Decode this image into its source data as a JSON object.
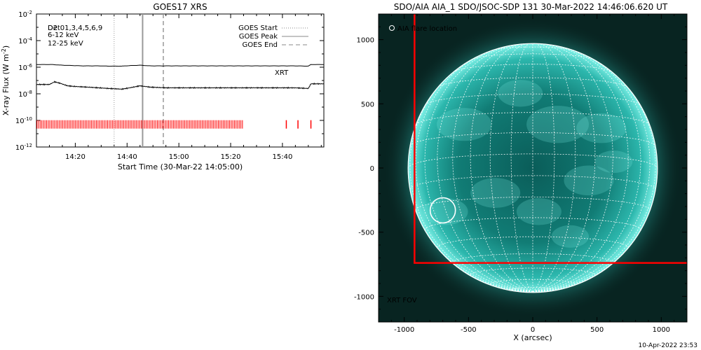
{
  "chart_data": [
    {
      "type": "line",
      "title": "GOES17 XRS",
      "xlabel": "Start Time (30-Mar-22 14:05:00)",
      "ylabel": "X-ray Flux (W m",
      "ylabel_sup": "-2",
      "ylabel_close": ")",
      "yscale": "log",
      "ylim": [
        1e-12,
        0.01
      ],
      "xlim_min": [
        0,
        111
      ],
      "ytick_labels": [
        {
          "exp": -12,
          "base": "10",
          "sup": "-12"
        },
        {
          "exp": -10,
          "base": "10",
          "sup": "-10"
        },
        {
          "exp": -8,
          "base": "10",
          "sup": "-8"
        },
        {
          "exp": -6,
          "base": "10",
          "sup": "-6"
        },
        {
          "exp": -4,
          "base": "10",
          "sup": "-4"
        },
        {
          "exp": -2,
          "base": "10",
          "sup": "-2"
        }
      ],
      "xtick_labels": [
        {
          "t": 15,
          "label": "14:20"
        },
        {
          "t": 35,
          "label": "14:40"
        },
        {
          "t": 55,
          "label": "15:00"
        },
        {
          "t": 75,
          "label": "15:20"
        },
        {
          "t": 95,
          "label": "15:40"
        }
      ],
      "det_label": "Det01,3,4,5,6,9",
      "det_overlay": "D2",
      "energy_labels": [
        {
          "text": "6-12 keV",
          "color": "#ff00ff"
        },
        {
          "text": "12-25 keV",
          "color": "#00cc00"
        }
      ],
      "legend": [
        {
          "text": "GOES Start",
          "style": "dotted"
        },
        {
          "text": "GOES Peak",
          "style": "solid"
        },
        {
          "text": "GOES End",
          "style": "dashed"
        }
      ],
      "goes_times_min": {
        "start": 30,
        "peak": 41,
        "end": 49
      },
      "xrt_label": "XRT",
      "xrt_color": "#ff0000",
      "xrt_bar_exp": -10.3,
      "xrt_dense_range_min": [
        0,
        80
      ],
      "xrt_isolated_min": [
        96.5,
        101,
        106
      ],
      "series": [
        {
          "key": "long",
          "color": "#000000",
          "x": [
            0,
            6,
            10,
            18,
            24,
            28,
            33,
            36,
            40,
            44,
            50,
            60,
            70,
            80,
            90,
            100,
            105,
            106,
            111
          ],
          "y_exp": [
            -5.8,
            -5.8,
            -5.85,
            -5.9,
            -5.9,
            -5.92,
            -5.92,
            -5.88,
            -5.85,
            -5.9,
            -5.9,
            -5.9,
            -5.9,
            -5.9,
            -5.9,
            -5.9,
            -5.92,
            -5.8,
            -5.8
          ]
        },
        {
          "key": "short",
          "color": "#000000",
          "x": [
            0,
            5,
            7,
            9,
            12,
            15,
            20,
            28,
            33,
            36,
            40,
            44,
            50,
            60,
            70,
            80,
            90,
            100,
            105,
            106,
            111
          ],
          "y_exp": [
            -7.3,
            -7.3,
            -7.1,
            -7.2,
            -7.4,
            -7.45,
            -7.5,
            -7.6,
            -7.65,
            -7.55,
            -7.4,
            -7.5,
            -7.55,
            -7.55,
            -7.55,
            -7.55,
            -7.55,
            -7.55,
            -7.6,
            -7.25,
            -7.25
          ]
        }
      ]
    },
    {
      "type": "image",
      "title": "SDO/AIA AIA_1 SDO/JSOC-SDP 131 30-Mar-2022 14:46:06.620 UT",
      "xlabel": "X (arcsec)",
      "ylabel": "",
      "xlim": [
        -1200,
        1200
      ],
      "ylim": [
        -1200,
        1200
      ],
      "xticks": [
        -1000,
        -500,
        0,
        500,
        1000
      ],
      "yticks": [
        -1000,
        -500,
        0,
        500,
        1000
      ],
      "solar_radius_arcsec": 970,
      "grid_spacing_deg": 10,
      "b0_deg": -6.5,
      "flare_location_label": "AIA flare location",
      "flare_location_arcsec": [
        -700,
        -330
      ],
      "xrt_fov_label": "XRT FOV",
      "xrt_fov_color": "#ff0000",
      "xrt_fov_corner_arcsec": [
        -920,
        -740
      ],
      "colors": {
        "disk_core": "#0d6f6a",
        "disk_limb": "#5fe9de",
        "background": "#082421"
      }
    }
  ],
  "footer_timestamp": "10-Apr-2022 23:53"
}
